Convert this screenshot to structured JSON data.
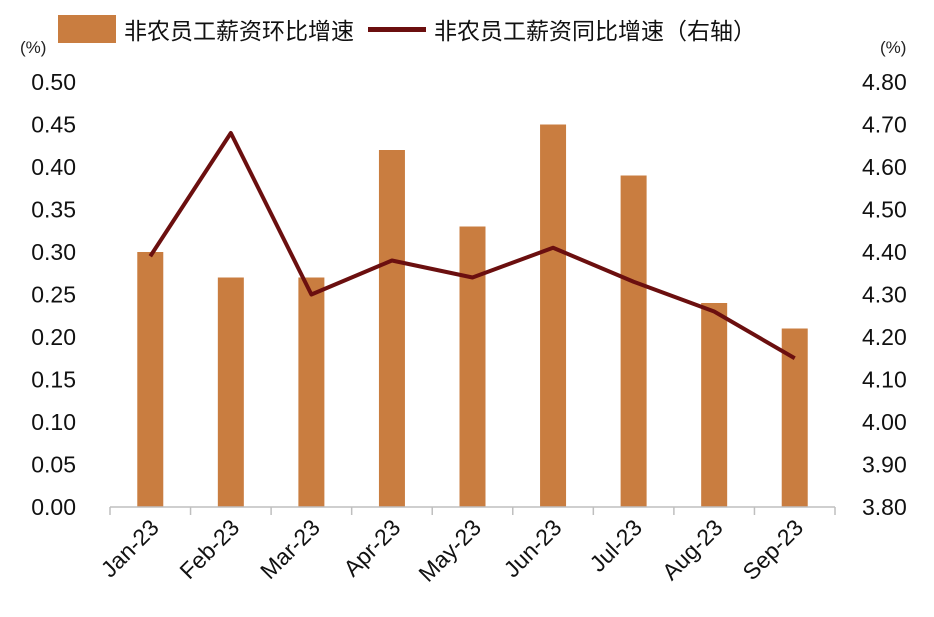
{
  "legend": {
    "bar_label": "非农员工薪资环比增速",
    "line_label": "非农员工薪资同比增速（右轴）"
  },
  "units": {
    "left": "(%)",
    "right": "(%)"
  },
  "colors": {
    "bar": "#C97D40",
    "line": "#6B0F0F",
    "axis": "#BFBFBF"
  },
  "chart_data": {
    "type": "bar",
    "categories": [
      "Jan-23",
      "Feb-23",
      "Mar-23",
      "Apr-23",
      "May-23",
      "Jun-23",
      "Jul-23",
      "Aug-23",
      "Sep-23"
    ],
    "series": [
      {
        "name": "非农员工薪资环比增速",
        "type": "bar",
        "axis": "left",
        "values": [
          0.3,
          0.27,
          0.27,
          0.42,
          0.33,
          0.45,
          0.39,
          0.24,
          0.21
        ]
      },
      {
        "name": "非农员工薪资同比增速（右轴）",
        "type": "line",
        "axis": "right",
        "values": [
          4.39,
          4.68,
          4.3,
          4.38,
          4.34,
          4.41,
          4.33,
          4.26,
          4.15
        ]
      }
    ],
    "y_left": {
      "lim": [
        0.0,
        0.5
      ],
      "ticks": [
        "0.00",
        "0.05",
        "0.10",
        "0.15",
        "0.20",
        "0.25",
        "0.30",
        "0.35",
        "0.40",
        "0.45",
        "0.50"
      ]
    },
    "y_right": {
      "lim": [
        3.8,
        4.8
      ],
      "ticks": [
        "3.80",
        "3.90",
        "4.00",
        "4.10",
        "4.20",
        "4.30",
        "4.40",
        "4.50",
        "4.60",
        "4.70",
        "4.80"
      ]
    },
    "grid": false,
    "legend_position": "top"
  }
}
